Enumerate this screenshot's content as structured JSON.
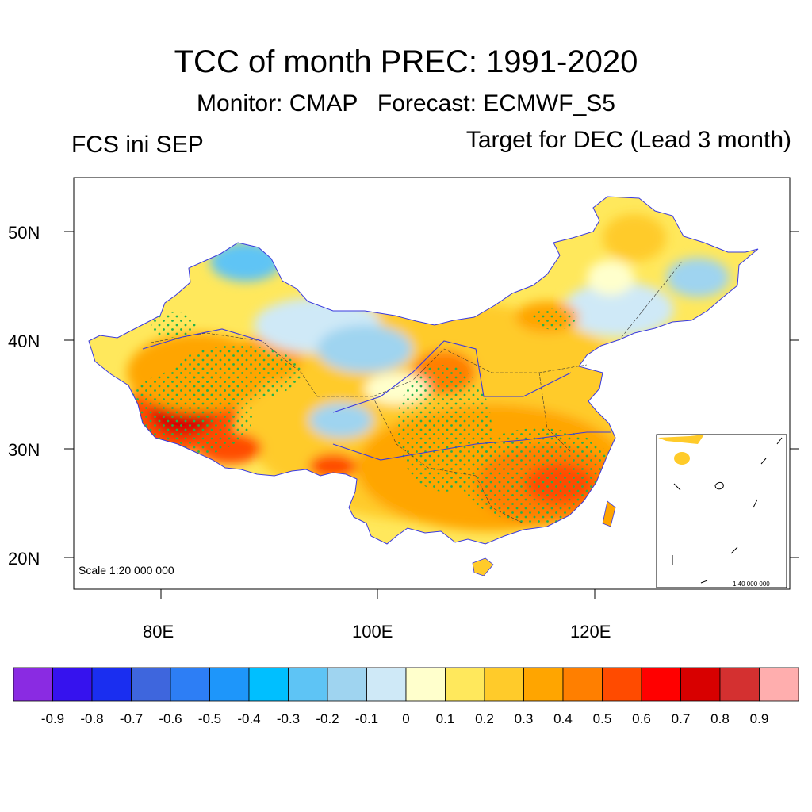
{
  "header": {
    "title": "TCC of month PREC: 1991-2020",
    "subtitle": "Monitor: CMAP   Forecast: ECMWF_S5",
    "left_note": "FCS ini SEP",
    "right_note": "Target for DEC (Lead 3 month)"
  },
  "map": {
    "lat_labels": [
      "50N",
      "40N",
      "30N",
      "20N"
    ],
    "lon_labels": [
      "80E",
      "100E",
      "120E"
    ],
    "scale_note": "Scale 1:20 000 000",
    "inset_scale_note": "1:40 000 000",
    "stippling": "significant",
    "high_correlation_regions": [
      "western Tibet",
      "southern Tibet",
      "southeast China",
      "Hunan-Jiangxi"
    ],
    "low_correlation_regions": [
      "Mongolian border",
      "Qinghai",
      "northeast China"
    ]
  },
  "colorbar": {
    "colors": [
      "#8a2be2",
      "#3612ee",
      "#1a2ef0",
      "#3e66dd",
      "#2d7ef5",
      "#1e96fa",
      "#00bfff",
      "#5ec4f5",
      "#9fd4f0",
      "#cfe9f7",
      "#ffffcc",
      "#ffe85c",
      "#ffcb2a",
      "#ffa500",
      "#ff7f00",
      "#ff4b00",
      "#ff0000",
      "#d80000",
      "#d43030",
      "#ffaeae"
    ],
    "labels": [
      "-0.9",
      "-0.8",
      "-0.7",
      "-0.6",
      "-0.5",
      "-0.4",
      "-0.3",
      "-0.2",
      "-0.1",
      "0",
      "0.1",
      "0.2",
      "0.3",
      "0.4",
      "0.5",
      "0.6",
      "0.7",
      "0.8",
      "0.9"
    ]
  }
}
